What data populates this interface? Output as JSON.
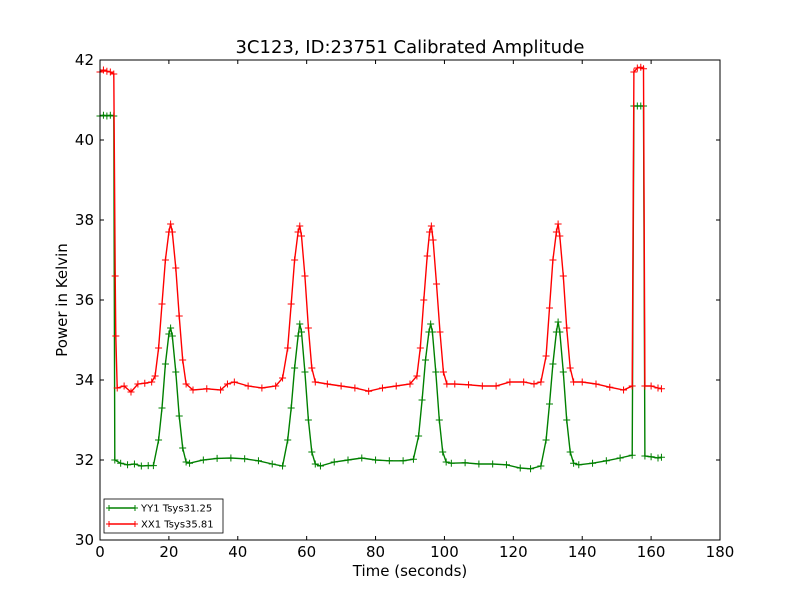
{
  "chart_data": {
    "type": "line",
    "title": "3C123, ID:23751 Calibrated Amplitude",
    "xlabel": "Time (seconds)",
    "ylabel": "Power in Kelvin",
    "xlim": [
      0,
      180
    ],
    "ylim": [
      30,
      42
    ],
    "x_ticks": [
      0,
      20,
      40,
      60,
      80,
      100,
      120,
      140,
      160,
      180
    ],
    "y_ticks": [
      30,
      32,
      34,
      36,
      38,
      40,
      42
    ],
    "grid": false,
    "legend_position": "lower-left",
    "markers": "plus",
    "series": [
      {
        "name": "YY1 Tsys31.25",
        "color": "#008000",
        "points": [
          [
            0.0,
            40.6
          ],
          [
            1.0,
            40.62
          ],
          [
            2.0,
            40.6
          ],
          [
            3.0,
            40.62
          ],
          [
            4.0,
            40.6
          ],
          [
            4.3,
            32.0
          ],
          [
            6.0,
            31.92
          ],
          [
            8.0,
            31.88
          ],
          [
            10.0,
            31.9
          ],
          [
            12.0,
            31.85
          ],
          [
            14.0,
            31.86
          ],
          [
            15.5,
            31.86
          ],
          [
            17.0,
            32.5
          ],
          [
            18.0,
            33.3
          ],
          [
            19.0,
            34.4
          ],
          [
            20.0,
            35.15
          ],
          [
            20.5,
            35.3
          ],
          [
            21.0,
            35.1
          ],
          [
            22.0,
            34.2
          ],
          [
            23.0,
            33.1
          ],
          [
            24.0,
            32.3
          ],
          [
            25.0,
            31.95
          ],
          [
            26.0,
            31.92
          ],
          [
            30.0,
            32.0
          ],
          [
            34.0,
            32.04
          ],
          [
            38.0,
            32.05
          ],
          [
            42.0,
            32.03
          ],
          [
            46.0,
            31.98
          ],
          [
            50.0,
            31.9
          ],
          [
            53.0,
            31.85
          ],
          [
            54.5,
            32.5
          ],
          [
            55.5,
            33.3
          ],
          [
            56.5,
            34.3
          ],
          [
            57.5,
            35.1
          ],
          [
            58.0,
            35.4
          ],
          [
            58.5,
            35.2
          ],
          [
            59.5,
            34.2
          ],
          [
            60.5,
            33.0
          ],
          [
            61.5,
            32.2
          ],
          [
            62.5,
            31.9
          ],
          [
            64.0,
            31.85
          ],
          [
            68.0,
            31.95
          ],
          [
            72.0,
            32.0
          ],
          [
            76.0,
            32.05
          ],
          [
            80.0,
            32.0
          ],
          [
            84.0,
            31.98
          ],
          [
            88.0,
            31.98
          ],
          [
            91.0,
            32.02
          ],
          [
            92.5,
            32.6
          ],
          [
            93.5,
            33.5
          ],
          [
            94.5,
            34.5
          ],
          [
            95.5,
            35.2
          ],
          [
            96.0,
            35.4
          ],
          [
            96.5,
            35.2
          ],
          [
            97.5,
            34.2
          ],
          [
            98.5,
            33.0
          ],
          [
            99.5,
            32.2
          ],
          [
            100.5,
            31.95
          ],
          [
            102.0,
            31.92
          ],
          [
            106.0,
            31.93
          ],
          [
            110.0,
            31.9
          ],
          [
            114.0,
            31.9
          ],
          [
            118.0,
            31.88
          ],
          [
            122.0,
            31.8
          ],
          [
            125.0,
            31.78
          ],
          [
            128.0,
            31.85
          ],
          [
            129.5,
            32.5
          ],
          [
            130.5,
            33.4
          ],
          [
            131.5,
            34.4
          ],
          [
            132.5,
            35.2
          ],
          [
            133.0,
            35.45
          ],
          [
            133.5,
            35.2
          ],
          [
            134.5,
            34.2
          ],
          [
            135.5,
            33.0
          ],
          [
            136.5,
            32.2
          ],
          [
            137.5,
            31.92
          ],
          [
            139.0,
            31.88
          ],
          [
            143.0,
            31.92
          ],
          [
            147.0,
            31.98
          ],
          [
            151.0,
            32.05
          ],
          [
            154.5,
            32.12
          ],
          [
            155.0,
            40.85
          ],
          [
            156.0,
            40.85
          ],
          [
            157.0,
            40.85
          ],
          [
            157.8,
            40.85
          ],
          [
            158.2,
            32.1
          ],
          [
            160.0,
            32.08
          ],
          [
            162.0,
            32.05
          ],
          [
            163.0,
            32.07
          ]
        ]
      },
      {
        "name": "XX1 Tsys35.81",
        "color": "#ff0000",
        "points": [
          [
            0.0,
            41.7
          ],
          [
            1.0,
            41.75
          ],
          [
            2.0,
            41.72
          ],
          [
            3.0,
            41.7
          ],
          [
            4.0,
            41.65
          ],
          [
            4.4,
            36.6
          ],
          [
            4.6,
            35.1
          ],
          [
            5.0,
            33.8
          ],
          [
            7.0,
            33.85
          ],
          [
            9.0,
            33.7
          ],
          [
            11.0,
            33.9
          ],
          [
            13.0,
            33.92
          ],
          [
            15.0,
            33.95
          ],
          [
            16.0,
            34.1
          ],
          [
            17.0,
            34.8
          ],
          [
            18.0,
            35.9
          ],
          [
            19.0,
            37.0
          ],
          [
            20.0,
            37.7
          ],
          [
            20.5,
            37.9
          ],
          [
            21.0,
            37.7
          ],
          [
            22.0,
            36.8
          ],
          [
            23.0,
            35.6
          ],
          [
            24.0,
            34.5
          ],
          [
            25.0,
            33.9
          ],
          [
            27.0,
            33.75
          ],
          [
            31.0,
            33.78
          ],
          [
            35.0,
            33.75
          ],
          [
            37.0,
            33.9
          ],
          [
            39.0,
            33.95
          ],
          [
            43.0,
            33.85
          ],
          [
            47.0,
            33.8
          ],
          [
            51.0,
            33.85
          ],
          [
            53.0,
            34.05
          ],
          [
            54.5,
            34.8
          ],
          [
            55.5,
            35.9
          ],
          [
            56.5,
            37.0
          ],
          [
            57.5,
            37.7
          ],
          [
            58.0,
            37.85
          ],
          [
            58.5,
            37.6
          ],
          [
            59.5,
            36.6
          ],
          [
            60.5,
            35.3
          ],
          [
            61.5,
            34.3
          ],
          [
            62.5,
            33.95
          ],
          [
            66.0,
            33.9
          ],
          [
            70.0,
            33.85
          ],
          [
            74.0,
            33.8
          ],
          [
            78.0,
            33.72
          ],
          [
            82.0,
            33.8
          ],
          [
            86.0,
            33.85
          ],
          [
            90.0,
            33.9
          ],
          [
            92.0,
            34.1
          ],
          [
            93.0,
            34.8
          ],
          [
            94.0,
            36.0
          ],
          [
            95.0,
            37.1
          ],
          [
            95.7,
            37.7
          ],
          [
            96.2,
            37.85
          ],
          [
            96.7,
            37.5
          ],
          [
            97.7,
            36.4
          ],
          [
            98.7,
            35.2
          ],
          [
            99.7,
            34.2
          ],
          [
            100.7,
            33.9
          ],
          [
            103.0,
            33.9
          ],
          [
            107.0,
            33.88
          ],
          [
            111.0,
            33.85
          ],
          [
            115.0,
            33.85
          ],
          [
            119.0,
            33.95
          ],
          [
            123.0,
            33.95
          ],
          [
            126.0,
            33.9
          ],
          [
            128.0,
            33.95
          ],
          [
            129.5,
            34.6
          ],
          [
            130.5,
            35.8
          ],
          [
            131.5,
            37.0
          ],
          [
            132.5,
            37.7
          ],
          [
            133.0,
            37.9
          ],
          [
            133.5,
            37.6
          ],
          [
            134.5,
            36.6
          ],
          [
            135.5,
            35.3
          ],
          [
            136.5,
            34.3
          ],
          [
            137.5,
            33.95
          ],
          [
            140.0,
            33.95
          ],
          [
            144.0,
            33.9
          ],
          [
            148.0,
            33.82
          ],
          [
            152.0,
            33.75
          ],
          [
            154.5,
            33.85
          ],
          [
            155.0,
            41.7
          ],
          [
            156.0,
            41.8
          ],
          [
            157.0,
            41.82
          ],
          [
            157.8,
            41.78
          ],
          [
            158.2,
            33.85
          ],
          [
            160.0,
            33.85
          ],
          [
            162.0,
            33.8
          ],
          [
            163.0,
            33.78
          ]
        ]
      }
    ]
  }
}
